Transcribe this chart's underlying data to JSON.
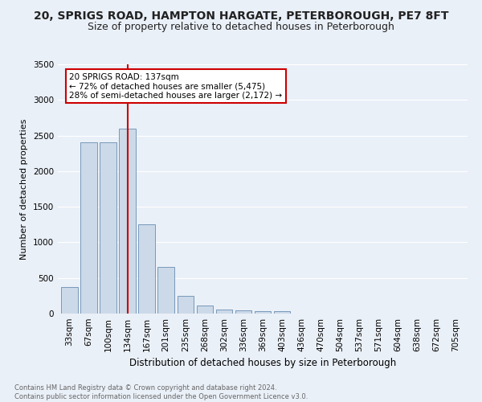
{
  "title": "20, SPRIGS ROAD, HAMPTON HARGATE, PETERBOROUGH, PE7 8FT",
  "subtitle": "Size of property relative to detached houses in Peterborough",
  "xlabel": "Distribution of detached houses by size in Peterborough",
  "ylabel": "Number of detached properties",
  "footer_line1": "Contains HM Land Registry data © Crown copyright and database right 2024.",
  "footer_line2": "Contains public sector information licensed under the Open Government Licence v3.0.",
  "bar_labels": [
    "33sqm",
    "67sqm",
    "100sqm",
    "134sqm",
    "167sqm",
    "201sqm",
    "235sqm",
    "268sqm",
    "302sqm",
    "336sqm",
    "369sqm",
    "403sqm",
    "436sqm",
    "470sqm",
    "504sqm",
    "537sqm",
    "571sqm",
    "604sqm",
    "638sqm",
    "672sqm",
    "705sqm"
  ],
  "bar_values": [
    375,
    2400,
    2400,
    2600,
    1250,
    650,
    250,
    110,
    60,
    50,
    30,
    30,
    0,
    0,
    0,
    0,
    0,
    0,
    0,
    0,
    0
  ],
  "bar_color": "#ccd9e8",
  "bar_edge_color": "#7799bb",
  "vline_x": 3,
  "vline_color": "#cc0000",
  "annotation_text": "20 SPRIGS ROAD: 137sqm\n← 72% of detached houses are smaller (5,475)\n28% of semi-detached houses are larger (2,172) →",
  "annotation_box_color": "#ffffff",
  "annotation_box_edge": "#cc0000",
  "annotation_fontsize": 7.5,
  "ylim": [
    0,
    3500
  ],
  "yticks": [
    0,
    500,
    1000,
    1500,
    2000,
    2500,
    3000,
    3500
  ],
  "background_color": "#eaf0f8",
  "grid_color": "#ffffff",
  "title_fontsize": 10,
  "subtitle_fontsize": 9,
  "ylabel_fontsize": 8,
  "xlabel_fontsize": 8.5,
  "tick_fontsize": 7.5,
  "footer_fontsize": 6.0
}
